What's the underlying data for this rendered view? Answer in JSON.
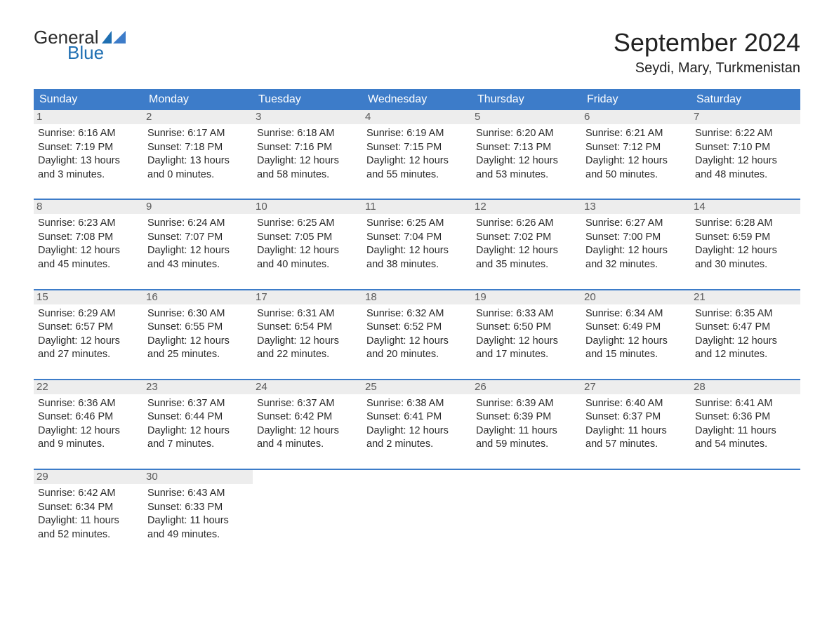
{
  "brand": {
    "word1": "General",
    "word2": "Blue",
    "text_color": "#2b2b2b",
    "accent_color": "#1f6fb2"
  },
  "title": "September 2024",
  "location": "Seydi, Mary, Turkmenistan",
  "colors": {
    "header_bg": "#3d7cc9",
    "header_text": "#ffffff",
    "daynum_bg": "#ededed",
    "daynum_text": "#5a5a5a",
    "body_text": "#2b2b2b",
    "week_divider": "#3d7cc9",
    "page_bg": "#ffffff"
  },
  "typography": {
    "title_size_pt": 27,
    "location_size_pt": 15,
    "dow_size_pt": 12,
    "body_size_pt": 11
  },
  "days_of_week": [
    "Sunday",
    "Monday",
    "Tuesday",
    "Wednesday",
    "Thursday",
    "Friday",
    "Saturday"
  ],
  "calendar": {
    "type": "table",
    "columns": 7,
    "weeks": [
      [
        {
          "n": "1",
          "sunrise": "6:16 AM",
          "sunset": "7:19 PM",
          "daylight": "13 hours and 3 minutes."
        },
        {
          "n": "2",
          "sunrise": "6:17 AM",
          "sunset": "7:18 PM",
          "daylight": "13 hours and 0 minutes."
        },
        {
          "n": "3",
          "sunrise": "6:18 AM",
          "sunset": "7:16 PM",
          "daylight": "12 hours and 58 minutes."
        },
        {
          "n": "4",
          "sunrise": "6:19 AM",
          "sunset": "7:15 PM",
          "daylight": "12 hours and 55 minutes."
        },
        {
          "n": "5",
          "sunrise": "6:20 AM",
          "sunset": "7:13 PM",
          "daylight": "12 hours and 53 minutes."
        },
        {
          "n": "6",
          "sunrise": "6:21 AM",
          "sunset": "7:12 PM",
          "daylight": "12 hours and 50 minutes."
        },
        {
          "n": "7",
          "sunrise": "6:22 AM",
          "sunset": "7:10 PM",
          "daylight": "12 hours and 48 minutes."
        }
      ],
      [
        {
          "n": "8",
          "sunrise": "6:23 AM",
          "sunset": "7:08 PM",
          "daylight": "12 hours and 45 minutes."
        },
        {
          "n": "9",
          "sunrise": "6:24 AM",
          "sunset": "7:07 PM",
          "daylight": "12 hours and 43 minutes."
        },
        {
          "n": "10",
          "sunrise": "6:25 AM",
          "sunset": "7:05 PM",
          "daylight": "12 hours and 40 minutes."
        },
        {
          "n": "11",
          "sunrise": "6:25 AM",
          "sunset": "7:04 PM",
          "daylight": "12 hours and 38 minutes."
        },
        {
          "n": "12",
          "sunrise": "6:26 AM",
          "sunset": "7:02 PM",
          "daylight": "12 hours and 35 minutes."
        },
        {
          "n": "13",
          "sunrise": "6:27 AM",
          "sunset": "7:00 PM",
          "daylight": "12 hours and 32 minutes."
        },
        {
          "n": "14",
          "sunrise": "6:28 AM",
          "sunset": "6:59 PM",
          "daylight": "12 hours and 30 minutes."
        }
      ],
      [
        {
          "n": "15",
          "sunrise": "6:29 AM",
          "sunset": "6:57 PM",
          "daylight": "12 hours and 27 minutes."
        },
        {
          "n": "16",
          "sunrise": "6:30 AM",
          "sunset": "6:55 PM",
          "daylight": "12 hours and 25 minutes."
        },
        {
          "n": "17",
          "sunrise": "6:31 AM",
          "sunset": "6:54 PM",
          "daylight": "12 hours and 22 minutes."
        },
        {
          "n": "18",
          "sunrise": "6:32 AM",
          "sunset": "6:52 PM",
          "daylight": "12 hours and 20 minutes."
        },
        {
          "n": "19",
          "sunrise": "6:33 AM",
          "sunset": "6:50 PM",
          "daylight": "12 hours and 17 minutes."
        },
        {
          "n": "20",
          "sunrise": "6:34 AM",
          "sunset": "6:49 PM",
          "daylight": "12 hours and 15 minutes."
        },
        {
          "n": "21",
          "sunrise": "6:35 AM",
          "sunset": "6:47 PM",
          "daylight": "12 hours and 12 minutes."
        }
      ],
      [
        {
          "n": "22",
          "sunrise": "6:36 AM",
          "sunset": "6:46 PM",
          "daylight": "12 hours and 9 minutes."
        },
        {
          "n": "23",
          "sunrise": "6:37 AM",
          "sunset": "6:44 PM",
          "daylight": "12 hours and 7 minutes."
        },
        {
          "n": "24",
          "sunrise": "6:37 AM",
          "sunset": "6:42 PM",
          "daylight": "12 hours and 4 minutes."
        },
        {
          "n": "25",
          "sunrise": "6:38 AM",
          "sunset": "6:41 PM",
          "daylight": "12 hours and 2 minutes."
        },
        {
          "n": "26",
          "sunrise": "6:39 AM",
          "sunset": "6:39 PM",
          "daylight": "11 hours and 59 minutes."
        },
        {
          "n": "27",
          "sunrise": "6:40 AM",
          "sunset": "6:37 PM",
          "daylight": "11 hours and 57 minutes."
        },
        {
          "n": "28",
          "sunrise": "6:41 AM",
          "sunset": "6:36 PM",
          "daylight": "11 hours and 54 minutes."
        }
      ],
      [
        {
          "n": "29",
          "sunrise": "6:42 AM",
          "sunset": "6:34 PM",
          "daylight": "11 hours and 52 minutes."
        },
        {
          "n": "30",
          "sunrise": "6:43 AM",
          "sunset": "6:33 PM",
          "daylight": "11 hours and 49 minutes."
        },
        null,
        null,
        null,
        null,
        null
      ]
    ]
  },
  "labels": {
    "sunrise": "Sunrise:",
    "sunset": "Sunset:",
    "daylight": "Daylight:"
  }
}
